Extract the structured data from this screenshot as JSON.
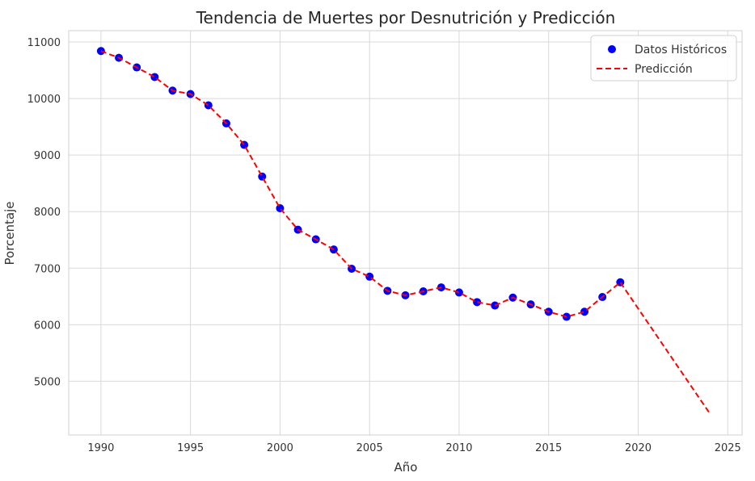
{
  "chart_data": {
    "type": "scatter",
    "title": "Tendencia de Muertes por Desnutrición y Predicción",
    "xlabel": "Año",
    "ylabel": "Porcentaje",
    "xlim": [
      1988.2,
      2025.8
    ],
    "ylim": [
      4050,
      11200
    ],
    "xticks": [
      1990,
      1995,
      2000,
      2005,
      2010,
      2015,
      2020,
      2025
    ],
    "yticks": [
      5000,
      6000,
      7000,
      8000,
      9000,
      10000,
      11000
    ],
    "grid": true,
    "legend_position": "top-right",
    "series": [
      {
        "name": "Datos Históricos",
        "kind": "scatter",
        "color": "#0000ff",
        "x": [
          1990,
          1991,
          1992,
          1993,
          1994,
          1995,
          1996,
          1997,
          1998,
          1999,
          2000,
          2001,
          2002,
          2003,
          2004,
          2005,
          2006,
          2007,
          2008,
          2009,
          2010,
          2011,
          2012,
          2013,
          2014,
          2015,
          2016,
          2017,
          2018,
          2019
        ],
        "y": [
          10840,
          10720,
          10550,
          10380,
          10140,
          10080,
          9880,
          9560,
          9180,
          8620,
          8060,
          7680,
          7510,
          7330,
          6990,
          6850,
          6600,
          6520,
          6590,
          6660,
          6570,
          6400,
          6340,
          6480,
          6360,
          6230,
          6140,
          6230,
          6490,
          6750
        ]
      },
      {
        "name": "Predicción",
        "kind": "line",
        "color": "#ff0000",
        "dash": true,
        "x": [
          1990,
          1991,
          1992,
          1993,
          1994,
          1995,
          1996,
          1997,
          1998,
          1999,
          2000,
          2001,
          2002,
          2003,
          2004,
          2005,
          2006,
          2007,
          2008,
          2009,
          2010,
          2011,
          2012,
          2013,
          2014,
          2015,
          2016,
          2017,
          2018,
          2019,
          2024
        ],
        "y": [
          10840,
          10720,
          10550,
          10380,
          10140,
          10080,
          9880,
          9560,
          9180,
          8620,
          8060,
          7680,
          7510,
          7330,
          6990,
          6850,
          6600,
          6520,
          6590,
          6660,
          6570,
          6400,
          6340,
          6480,
          6360,
          6230,
          6140,
          6230,
          6490,
          6750,
          4430
        ]
      }
    ]
  }
}
